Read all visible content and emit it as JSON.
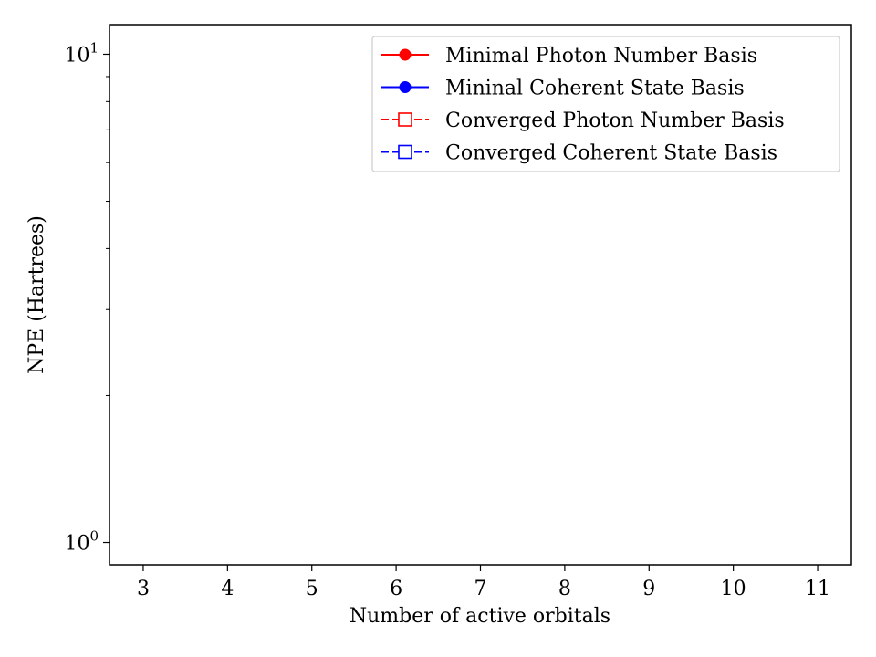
{
  "chart_data": {
    "type": "line",
    "title": "",
    "xlabel": "Number of active orbitals",
    "ylabel": "NPE (Hartrees)",
    "x_ticks": [
      "3",
      "4",
      "5",
      "6",
      "7",
      "8",
      "9",
      "10",
      "11"
    ],
    "xlim": [
      2.6,
      11.4
    ],
    "y_scale": "log",
    "ylim": [
      0.9,
      11.5
    ],
    "y_major_ticks": [
      {
        "base": "10",
        "exp": "0",
        "value": 1
      },
      {
        "base": "10",
        "exp": "1",
        "value": 10
      }
    ],
    "grid": false,
    "legend_position": "top-right",
    "series": [
      {
        "name": "Minimal Photon Number Basis",
        "color": "#ff0000",
        "line_style": "solid",
        "marker": "filled-circle",
        "x": [],
        "y": []
      },
      {
        "name": "Mininal Coherent State Basis",
        "color": "#0000ff",
        "line_style": "solid",
        "marker": "filled-circle",
        "x": [],
        "y": []
      },
      {
        "name": "Converged Photon Number Basis",
        "color": "#ff0000",
        "line_style": "dashed",
        "marker": "open-square",
        "x": [],
        "y": []
      },
      {
        "name": "Converged Coherent State Basis",
        "color": "#0000ff",
        "line_style": "dashed",
        "marker": "open-square",
        "x": [],
        "y": []
      }
    ]
  }
}
